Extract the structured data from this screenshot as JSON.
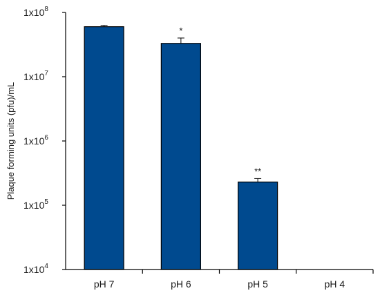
{
  "chart_data": {
    "type": "bar",
    "ylabel": "Plaque forming units (pfu)/mL",
    "yscale": "log",
    "ylim": [
      10000,
      100000000
    ],
    "y_tick_labels": [
      {
        "mantissa": "1x10",
        "exp": "4"
      },
      {
        "mantissa": "1x10",
        "exp": "5"
      },
      {
        "mantissa": "1x10",
        "exp": "6"
      },
      {
        "mantissa": "1x10",
        "exp": "7"
      },
      {
        "mantissa": "1x10",
        "exp": "8"
      }
    ],
    "categories": [
      "pH 7",
      "pH 6",
      "pH 5",
      "pH 4"
    ],
    "values": [
      60000000,
      33000000,
      230000,
      null
    ],
    "error_plus": [
      3000000,
      7000000,
      30000,
      null
    ],
    "significance": [
      "",
      "*",
      "**",
      ""
    ],
    "bar_color": "#004a8f",
    "grid": false,
    "legend": "none"
  }
}
